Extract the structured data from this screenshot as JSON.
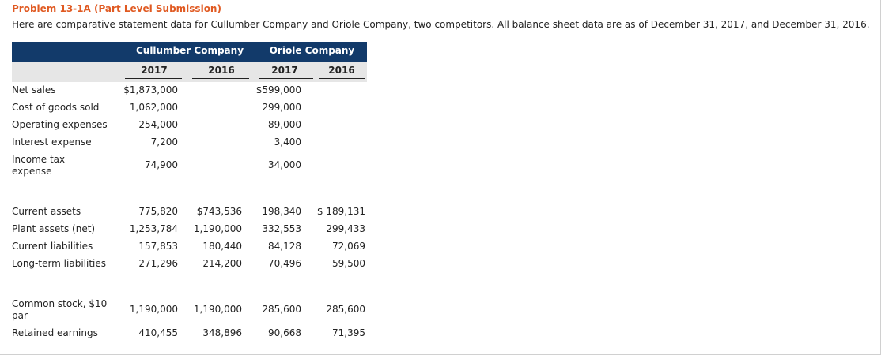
{
  "title": "Problem 13-1A (Part Level Submission)",
  "intro": "Here are comparative statement data for Cullumber Company and Oriole Company, two competitors. All balance sheet data are as of December 31, 2017, and December 31, 2016.",
  "companies": [
    "Cullumber Company",
    "Oriole Company"
  ],
  "years": [
    "2017",
    "2016",
    "2017",
    "2016"
  ],
  "income_rows": [
    {
      "label": "Net sales",
      "values": [
        "$1,873,000",
        "",
        "$599,000",
        ""
      ]
    },
    {
      "label": "Cost of goods sold",
      "values": [
        "1,062,000",
        "",
        "299,000",
        ""
      ]
    },
    {
      "label": "Operating expenses",
      "values": [
        "254,000",
        "",
        "89,000",
        ""
      ]
    },
    {
      "label": "Interest expense",
      "values": [
        "7,200",
        "",
        "3,400",
        ""
      ]
    },
    {
      "label_line1": "Income tax",
      "label_line2": "expense",
      "values": [
        "74,900",
        "",
        "34,000",
        ""
      ]
    }
  ],
  "balance_rows": [
    {
      "label": "Current assets",
      "values": [
        "775,820",
        "$743,536",
        "198,340",
        "$ 189,131"
      ]
    },
    {
      "label": "Plant assets (net)",
      "values": [
        "1,253,784",
        "1,190,000",
        "332,553",
        "299,433"
      ]
    },
    {
      "label": "Current liabilities",
      "values": [
        "157,853",
        "180,440",
        "84,128",
        "72,069"
      ]
    },
    {
      "label": "Long-term liabilities",
      "values": [
        "271,296",
        "214,200",
        "70,496",
        "59,500"
      ]
    }
  ],
  "equity_rows": [
    {
      "label_line1": "Common stock, $10",
      "label_line2": "par",
      "values": [
        "1,190,000",
        "1,190,000",
        "285,600",
        "285,600"
      ]
    },
    {
      "label": "Retained earnings",
      "values": [
        "410,455",
        "348,896",
        "90,668",
        "71,395"
      ]
    }
  ]
}
